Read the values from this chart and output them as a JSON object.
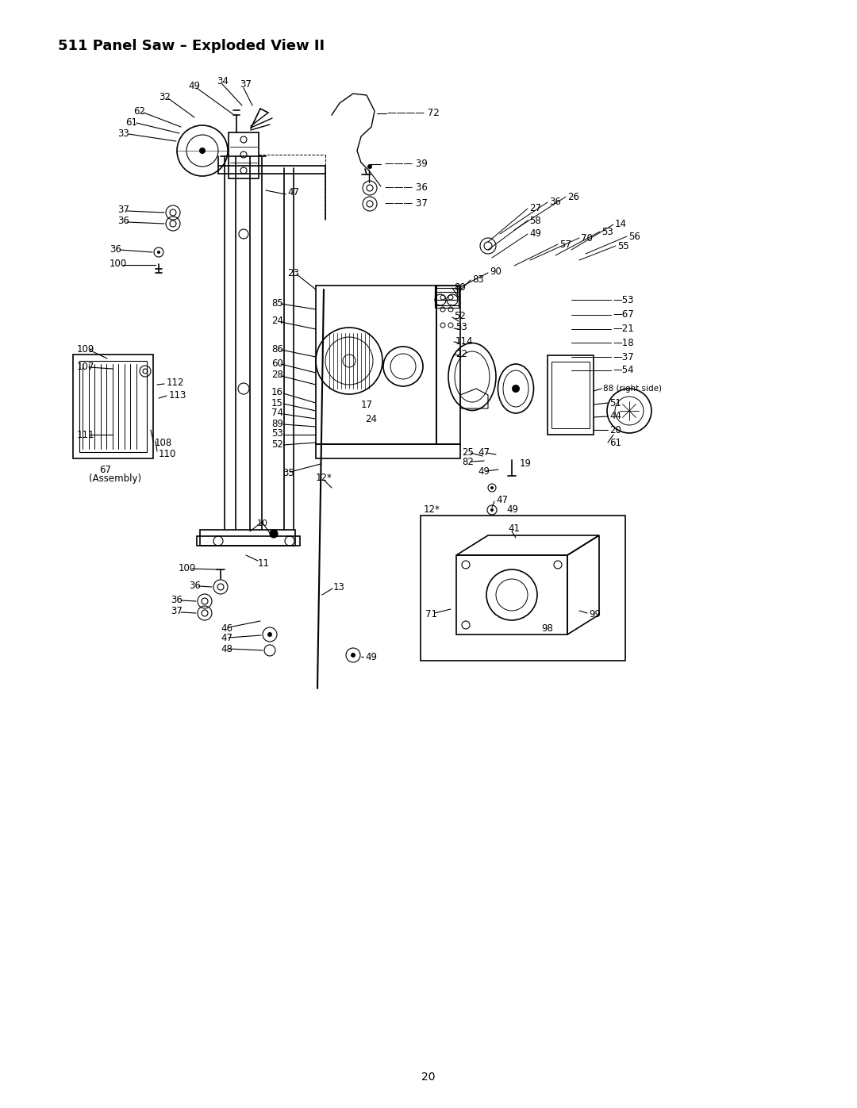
{
  "title": "511 Panel Saw – Exploded View II",
  "page_number": "20",
  "background_color": "#ffffff",
  "title_fontsize": 13,
  "figsize": [
    10.8,
    13.97
  ],
  "dpi": 100
}
